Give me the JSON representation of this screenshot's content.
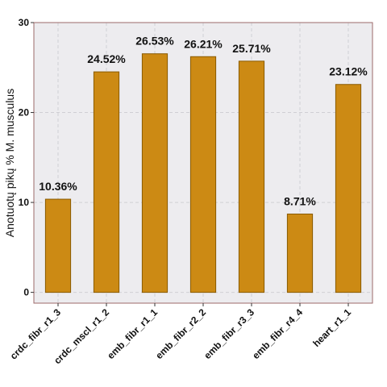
{
  "chart_data": {
    "type": "bar",
    "categories": [
      "crdc_fibr_r1_3",
      "crdc_mscl_r1_2",
      "emb_fibr_r1_1",
      "emb_fibr_r2_2",
      "emb_fibr_r3_3",
      "emb_fibr_r4_4",
      "heart_r1_1"
    ],
    "values": [
      10.36,
      24.52,
      26.53,
      26.21,
      25.71,
      8.71,
      23.12
    ],
    "data_labels": [
      "10.36%",
      "24.52%",
      "26.53%",
      "26.21%",
      "25.71%",
      "8.71%",
      "23.12%"
    ],
    "title": "",
    "xlabel": "",
    "ylabel": "Anotuotų pikų % M. musculus",
    "ylim": [
      -1.2,
      30
    ],
    "yticks": [
      0,
      10,
      20,
      30
    ],
    "ytick_labels": [
      "0",
      "10",
      "20",
      "30"
    ],
    "grid": true,
    "colors": {
      "bar_fill": "#CC8A14",
      "bar_stroke": "#8A5A00",
      "panel_bg": "#EDECEF",
      "panel_border": "#9C6A6A",
      "grid": "#D0CFD4"
    }
  }
}
